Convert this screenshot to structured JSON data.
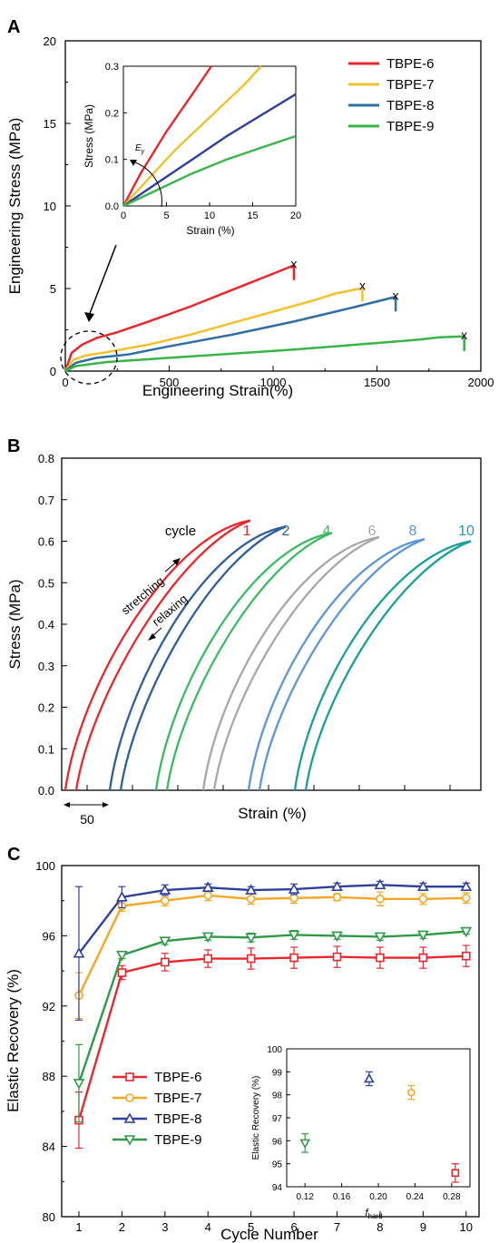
{
  "chart_data": [
    {
      "panel": "A",
      "type": "line",
      "xlabel": "Engineering Strain(%)",
      "ylabel": "Engineering Stress (MPa)",
      "xlim": [
        0,
        2000
      ],
      "ylim": [
        0,
        20
      ],
      "xticks": [
        0,
        500,
        1000,
        1500,
        2000
      ],
      "yticks": [
        0,
        5,
        10,
        15,
        20
      ],
      "legend_position": "top-right",
      "series": [
        {
          "name": "TBPE-6",
          "color": "#e8262c",
          "x": [
            0,
            30,
            80,
            150,
            250,
            400,
            600,
            800,
            1000,
            1100
          ],
          "y": [
            0,
            1.1,
            1.6,
            2.0,
            2.35,
            3.0,
            3.9,
            4.9,
            5.9,
            6.4
          ]
        },
        {
          "name": "TBPE-7",
          "color": "#f2c12e",
          "x": [
            0,
            40,
            100,
            200,
            400,
            600,
            800,
            1000,
            1200,
            1300,
            1420
          ],
          "y": [
            0,
            0.7,
            0.95,
            1.15,
            1.6,
            2.2,
            2.9,
            3.6,
            4.3,
            4.7,
            5.0
          ]
        },
        {
          "name": "TBPE-8",
          "color": "#2f6ea5",
          "x": [
            0,
            50,
            150,
            300,
            500,
            800,
            1100,
            1400,
            1590
          ],
          "y": [
            0,
            0.5,
            0.8,
            1.0,
            1.5,
            2.2,
            3.0,
            3.9,
            4.5
          ]
        },
        {
          "name": "TBPE-9",
          "color": "#38b44a",
          "x": [
            0,
            50,
            200,
            500,
            800,
            1100,
            1400,
            1700,
            1800,
            1920
          ],
          "y": [
            0,
            0.3,
            0.55,
            0.8,
            1.05,
            1.3,
            1.6,
            1.9,
            2.05,
            2.1
          ]
        }
      ],
      "break_markers": [
        {
          "series": "TBPE-6",
          "x": 1100,
          "y": 6.5
        },
        {
          "series": "TBPE-7",
          "x": 1430,
          "y": 5.2
        },
        {
          "series": "TBPE-8",
          "x": 1590,
          "y": 4.6
        },
        {
          "series": "TBPE-9",
          "x": 1920,
          "y": 2.2
        }
      ],
      "inset": {
        "type": "line",
        "xlabel": "Strain (%)",
        "ylabel": "Stress (MPa)",
        "annotation": "E",
        "annotation_subscript": "y",
        "xlim": [
          0,
          20
        ],
        "ylim": [
          0,
          0.3
        ],
        "xticks": [
          0,
          5,
          10,
          15,
          20
        ],
        "yticks": [
          "0.0",
          "0.1",
          "0.2",
          "0.3"
        ],
        "series": [
          {
            "name": "TBPE-6",
            "color": "#e8262c",
            "x": [
              0,
              2,
              5,
              8,
              10.2
            ],
            "y": [
              0,
              0.07,
              0.16,
              0.24,
              0.3
            ]
          },
          {
            "name": "TBPE-7",
            "color": "#f2c12e",
            "x": [
              0,
              3,
              6,
              10,
              14,
              16
            ],
            "y": [
              0,
              0.06,
              0.12,
              0.19,
              0.26,
              0.3
            ]
          },
          {
            "name": "TBPE-8",
            "color": "#2e3f9e",
            "x": [
              0,
              4,
              8,
              12,
              16,
              20
            ],
            "y": [
              0,
              0.05,
              0.1,
              0.15,
              0.195,
              0.24
            ]
          },
          {
            "name": "TBPE-9",
            "color": "#38b44a",
            "x": [
              0,
              4,
              8,
              12,
              16,
              20
            ],
            "y": [
              0,
              0.035,
              0.07,
              0.1,
              0.125,
              0.15
            ]
          }
        ]
      }
    },
    {
      "panel": "B",
      "type": "line",
      "xlabel": "Strain (%)",
      "ylabel": "Stress (MPa)",
      "ylim": [
        0,
        0.8
      ],
      "yticks": [
        "0.0",
        "0.1",
        "0.2",
        "0.3",
        "0.4",
        "0.5",
        "0.6",
        "0.7",
        "0.8"
      ],
      "scale_bar_label": "50",
      "cycle_label": "cycle",
      "stretching_label": "stretching",
      "relaxing_label": "relaxing",
      "series": [
        {
          "name": "1",
          "color": "#e8262c",
          "peak": 0.65
        },
        {
          "name": "2",
          "color": "#2e5f9a",
          "peak": 0.635
        },
        {
          "name": "4",
          "color": "#3aba62",
          "peak": 0.62
        },
        {
          "name": "6",
          "color": "#a7a7a7",
          "peak": 0.61
        },
        {
          "name": "8",
          "color": "#5b96d6",
          "peak": 0.605
        },
        {
          "name": "10",
          "color": "#1a9e9a",
          "peak": 0.6
        }
      ]
    },
    {
      "panel": "C",
      "type": "line",
      "xlabel": "Cycle Number",
      "ylabel": "Elastic Recovery (%)",
      "xlim": [
        0.6,
        10.3
      ],
      "ylim": [
        80,
        100
      ],
      "xticks": [
        1,
        2,
        3,
        4,
        5,
        6,
        7,
        8,
        9,
        10
      ],
      "yticks": [
        80,
        84,
        88,
        92,
        96,
        100
      ],
      "legend_position": "lower-left",
      "x": [
        1,
        2,
        3,
        4,
        5,
        6,
        7,
        8,
        9,
        10
      ],
      "series": [
        {
          "name": "TBPE-6",
          "color": "#e8262c",
          "marker": "square",
          "values": [
            85.5,
            93.9,
            94.5,
            94.7,
            94.7,
            94.75,
            94.8,
            94.75,
            94.75,
            94.85
          ],
          "errors": [
            1.6,
            0.4,
            0.5,
            0.5,
            0.6,
            0.6,
            0.6,
            0.6,
            0.6,
            0.6
          ]
        },
        {
          "name": "TBPE-7",
          "color": "#f5a623",
          "marker": "circle",
          "values": [
            92.6,
            97.7,
            98.0,
            98.3,
            98.1,
            98.15,
            98.2,
            98.1,
            98.1,
            98.15
          ],
          "errors": [
            1.3,
            0.3,
            0.3,
            0.3,
            0.3,
            0.3,
            0.2,
            0.4,
            0.3,
            0.3
          ]
        },
        {
          "name": "TBPE-8",
          "color": "#2e3f9e",
          "marker": "triangle-up",
          "values": [
            95.0,
            98.2,
            98.6,
            98.75,
            98.6,
            98.65,
            98.8,
            98.9,
            98.8,
            98.8
          ],
          "errors": [
            3.8,
            0.6,
            0.3,
            0.2,
            0.2,
            0.3,
            0.2,
            0.2,
            0.2,
            0.2
          ]
        },
        {
          "name": "TBPE-9",
          "color": "#2e9a48",
          "marker": "triangle-down",
          "values": [
            87.6,
            94.9,
            95.7,
            95.95,
            95.9,
            96.05,
            96.0,
            95.95,
            96.05,
            96.25
          ],
          "errors": [
            2.2,
            0.2,
            0.2,
            0.2,
            0.25,
            0.25,
            0.2,
            0.2,
            0.2,
            0.15
          ]
        }
      ],
      "inset": {
        "type": "scatter",
        "xlabel": "f",
        "xlabel_subscript": "hard",
        "ylabel": "Elastic Recovery (%)",
        "xlim": [
          0.1,
          0.3
        ],
        "ylim": [
          94,
          100
        ],
        "xticks": [
          "0.12",
          "0.16",
          "0.20",
          "0.24",
          "0.28"
        ],
        "yticks": [
          94,
          95,
          96,
          97,
          98,
          99,
          100
        ],
        "points": [
          {
            "series": "TBPE-9",
            "x": 0.12,
            "y": 95.9,
            "err": 0.4,
            "color": "#2e9a48",
            "marker": "triangle-down"
          },
          {
            "series": "TBPE-8",
            "x": 0.19,
            "y": 98.7,
            "err": 0.3,
            "color": "#2e3f9e",
            "marker": "triangle-up"
          },
          {
            "series": "TBPE-7",
            "x": 0.236,
            "y": 98.1,
            "err": 0.3,
            "color": "#f5a623",
            "marker": "circle"
          },
          {
            "series": "TBPE-6",
            "x": 0.284,
            "y": 94.6,
            "err": 0.4,
            "color": "#e8262c",
            "marker": "square"
          }
        ]
      }
    }
  ],
  "panels": {
    "a": "A",
    "b": "B",
    "c": "C"
  }
}
